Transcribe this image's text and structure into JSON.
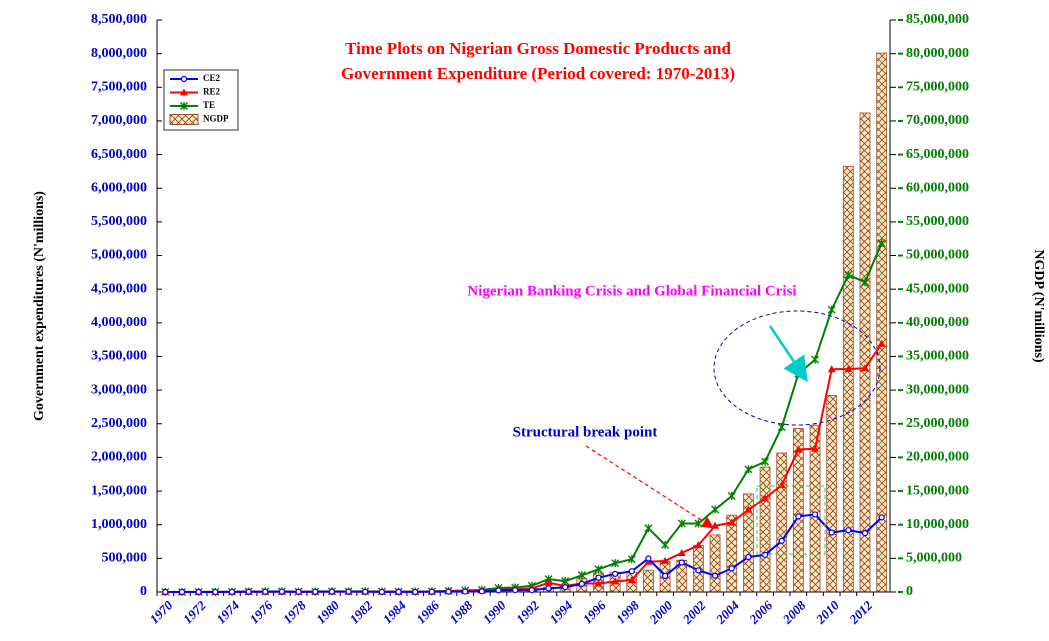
{
  "chart_data": {
    "type": "bar-line",
    "title": [
      "Time Plots on Nigerian Gross Domestic Products and",
      "Government Expenditure (Period covered: 1970-2013)"
    ],
    "y_label": "Government expenditures (N'millions)",
    "y2_label": "NGDP (N'millions)",
    "annotations": [
      "Nigerian Banking Crisis and Global Financial Crisi",
      "Structural break point"
    ],
    "categories": [
      "1970",
      null,
      "1972",
      null,
      "1974",
      null,
      "1976",
      null,
      "1978",
      null,
      "1980",
      null,
      "1982",
      null,
      "1984",
      null,
      "1986",
      null,
      "1988",
      null,
      "1990",
      null,
      "1992",
      null,
      "1994",
      null,
      "1996",
      null,
      "1998",
      null,
      "2000",
      null,
      "2002",
      null,
      "2004",
      null,
      "2006",
      null,
      "2008",
      null,
      "2010",
      null,
      "2012",
      null
    ],
    "series": [
      {
        "name": "CE2",
        "color": "#0000ff",
        "type": "line",
        "marker": "circle",
        "values": [
          187,
          174,
          264,
          566,
          1224,
          3207,
          4041,
          5004,
          2422,
          3377,
          5242,
          4976,
          3218,
          1864,
          1415,
          1757,
          3208,
          4962,
          6373,
          9636,
          24049,
          28341,
          28414,
          54502,
          70918,
          121138,
          212927,
          269652,
          309016,
          498028,
          239450,
          438696,
          321378,
          241688,
          351260,
          519470,
          552386,
          759323,
          1123460,
          1152800,
          883870,
          918550,
          874840,
          1108390
        ]
      },
      {
        "name": "RE2",
        "color": "#ff0000",
        "type": "line",
        "marker": "triangle",
        "values": [
          716,
          823,
          1012,
          1100,
          1817,
          3579,
          3813,
          3905,
          3819,
          3185,
          4805,
          4846,
          5507,
          4751,
          4101,
          5465,
          6107,
          12298,
          15941,
          22396,
          36220,
          38243,
          53034,
          136727,
          89975,
          127630,
          124490,
          158564,
          178098,
          449662,
          461600,
          579300,
          696800,
          984300,
          1032700,
          1223700,
          1390100,
          1589300,
          2117400,
          2127970,
          3310340,
          3314510,
          3325160,
          3689060
        ]
      },
      {
        "name": "TE",
        "color": "#008000",
        "type": "line",
        "marker": "star",
        "values": [
          903,
          997,
          1276,
          1666,
          3041,
          6786,
          7854,
          8909,
          6241,
          6562,
          10047,
          9822,
          8725,
          6615,
          5516,
          7222,
          9315,
          17260,
          22314,
          32032,
          60268,
          66584,
          92797,
          191229,
          160893,
          248768,
          337218,
          428215,
          487113,
          947690,
          701050,
          1017996,
          1018178,
          1225988,
          1426200,
          1822100,
          1938002,
          2450897,
          3240820,
          3452990,
          4194210,
          4712060,
          4605390,
          5185320
        ]
      },
      {
        "name": "NGDP",
        "color": "#a0522d",
        "type": "bar",
        "axis": "y2",
        "values": [
          5200,
          6600,
          7700,
          8900,
          15900,
          21500,
          26700,
          32800,
          35900,
          42200,
          50200,
          50700,
          51700,
          56800,
          63000,
          72400,
          73100,
          108900,
          145200,
          224800,
          260600,
          324000,
          549800,
          701500,
          914900,
          1977700,
          2823900,
          2939900,
          2881300,
          3254000,
          4582100,
          4725100,
          6912400,
          8487000,
          11411100,
          14572200,
          18564600,
          20657300,
          24296300,
          24794200,
          29205800,
          63258600,
          71186500,
          80092600
        ]
      }
    ],
    "ylim": [
      0,
      8500000
    ],
    "yticks": [
      0,
      {
        "value": 500000,
        "label": "500,000"
      },
      {
        "value": 1000000,
        "label": "1,000,000"
      },
      {
        "value": 1500000,
        "label": "1,500,000"
      },
      {
        "value": 2000000,
        "label": "2,000,000"
      },
      {
        "value": 2500000,
        "label": "2,500,000"
      },
      {
        "value": 3000000,
        "label": "3,000,000"
      },
      {
        "value": 3500000,
        "label": "3,500,000"
      },
      {
        "value": 4000000,
        "label": "4,000,000"
      },
      {
        "value": 4500000,
        "label": "4,500,000"
      },
      {
        "value": 5000000,
        "label": "5,000,000"
      },
      {
        "value": 5500000,
        "label": "5,500,000"
      },
      {
        "value": 6000000,
        "label": "6,000,000"
      },
      {
        "value": 6500000,
        "label": "6,500,000"
      },
      {
        "value": 7000000,
        "label": "7,000,000"
      },
      {
        "value": 7500000,
        "label": "7,500,000"
      },
      {
        "value": 8000000,
        "label": "8,000,000"
      },
      {
        "value": 8500000,
        "label": "8,500,000"
      }
    ],
    "y2lim": [
      0,
      85000000
    ],
    "y2ticks": [
      0,
      {
        "value": 5000000,
        "label": "5,000,000"
      },
      {
        "value": 10000000,
        "label": "10,000,000"
      },
      {
        "value": 15000000,
        "label": "15,000,000"
      },
      {
        "value": 20000000,
        "label": "20,000,000"
      },
      {
        "value": 25000000,
        "label": "25,000,000"
      },
      {
        "value": 30000000,
        "label": "30,000,000"
      },
      {
        "value": 35000000,
        "label": "35,000,000"
      },
      {
        "value": 40000000,
        "label": "40,000,000"
      },
      {
        "value": 45000000,
        "label": "45,000,000"
      },
      {
        "value": 50000000,
        "label": "50,000,000"
      },
      {
        "value": 55000000,
        "label": "55,000,000"
      },
      {
        "value": 60000000,
        "label": "60,000,000"
      },
      {
        "value": 65000000,
        "label": "65,000,000"
      },
      {
        "value": 70000000,
        "label": "70,000,000"
      },
      {
        "value": 75000000,
        "label": "75,000,000"
      },
      {
        "value": 80000000,
        "label": "80,000,000"
      },
      {
        "value": 85000000,
        "label": "85,000,000"
      }
    ],
    "grid": false
  }
}
